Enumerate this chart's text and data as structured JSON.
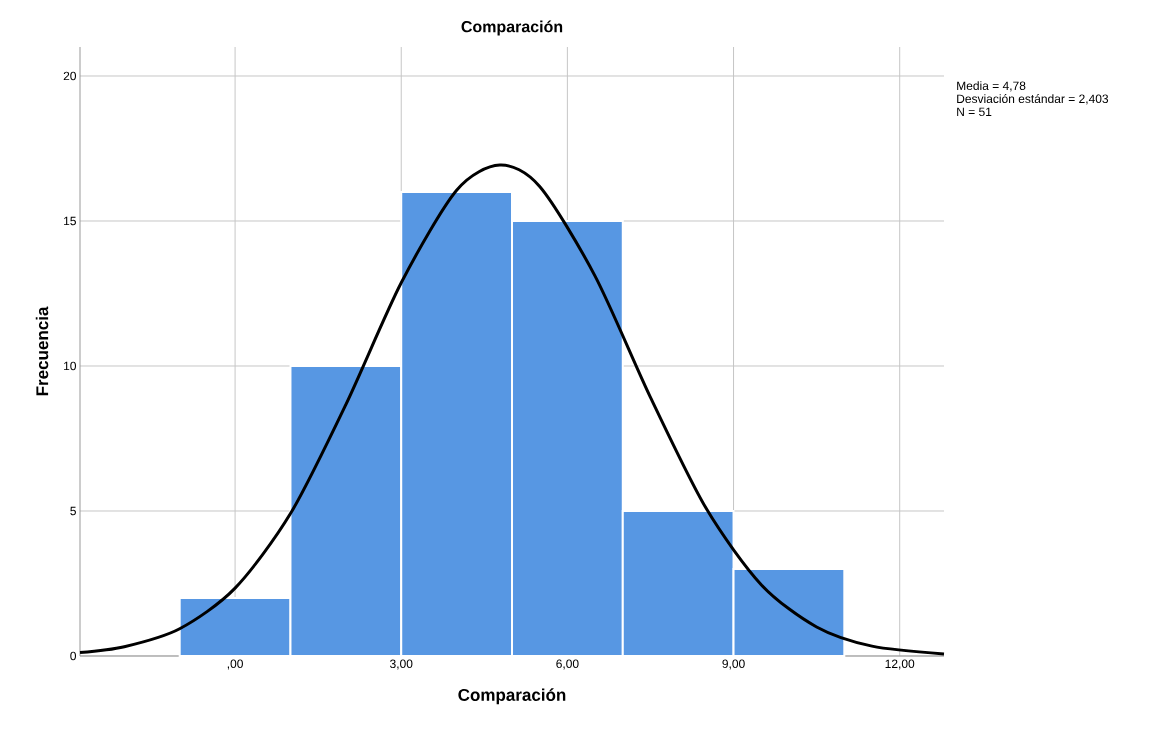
{
  "chart_data": {
    "type": "histogram",
    "title": "Comparación",
    "xlabel": "Comparación",
    "ylabel": "Frecuencia",
    "bins": [
      -1,
      1,
      3,
      5,
      7,
      9,
      11
    ],
    "values": [
      2,
      10,
      16,
      15,
      5,
      3
    ],
    "color": "#5797e3",
    "series": [
      {
        "type": "line",
        "color": "#000000",
        "x": [
          -2.8,
          -2,
          -1,
          0,
          1,
          2,
          3,
          4,
          4.78,
          5.5,
          6.5,
          7.5,
          8.5,
          9.5,
          10.5,
          11.5,
          12.8
        ],
        "values": [
          0.12,
          0.32,
          0.94,
          2.34,
          4.91,
          8.67,
          12.87,
          16.06,
          16.93,
          16.19,
          13.1,
          8.92,
          5.11,
          2.46,
          1.0,
          0.34,
          0.07
        ]
      }
    ],
    "xlim": [
      -2.8,
      12.8
    ],
    "ylim": [
      0,
      21
    ],
    "xticks": [
      {
        "value": 0,
        "label": ",00"
      },
      {
        "value": 3,
        "label": "3,00"
      },
      {
        "value": 6,
        "label": "6,00"
      },
      {
        "value": 9,
        "label": "9,00"
      },
      {
        "value": 12,
        "label": "12,00"
      }
    ],
    "yticks": [
      0,
      5,
      10,
      15,
      20
    ],
    "grid": true,
    "annotations": [
      "Media = 4,78",
      "Desviación estándar = 2,403",
      "N = 51"
    ]
  }
}
